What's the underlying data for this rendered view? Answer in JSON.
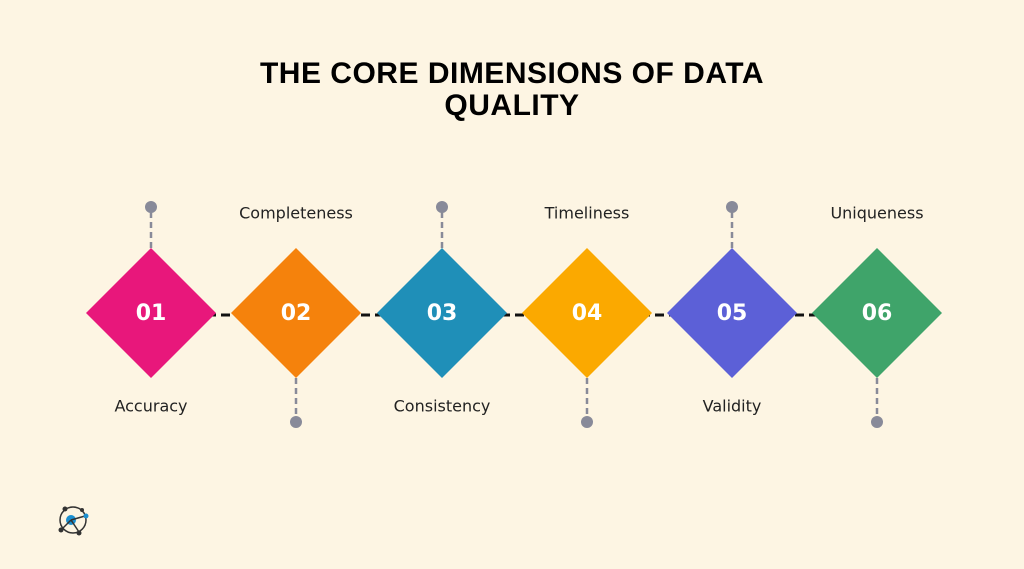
{
  "title": "THE CORE DIMENSIONS OF DATA QUALITY",
  "items": [
    {
      "number": "01",
      "label": "Accuracy"
    },
    {
      "number": "02",
      "label": "Completeness"
    },
    {
      "number": "03",
      "label": "Consistency"
    },
    {
      "number": "04",
      "label": "Timeliness"
    },
    {
      "number": "05",
      "label": "Validity"
    },
    {
      "number": "06",
      "label": "Uniqueness"
    }
  ]
}
